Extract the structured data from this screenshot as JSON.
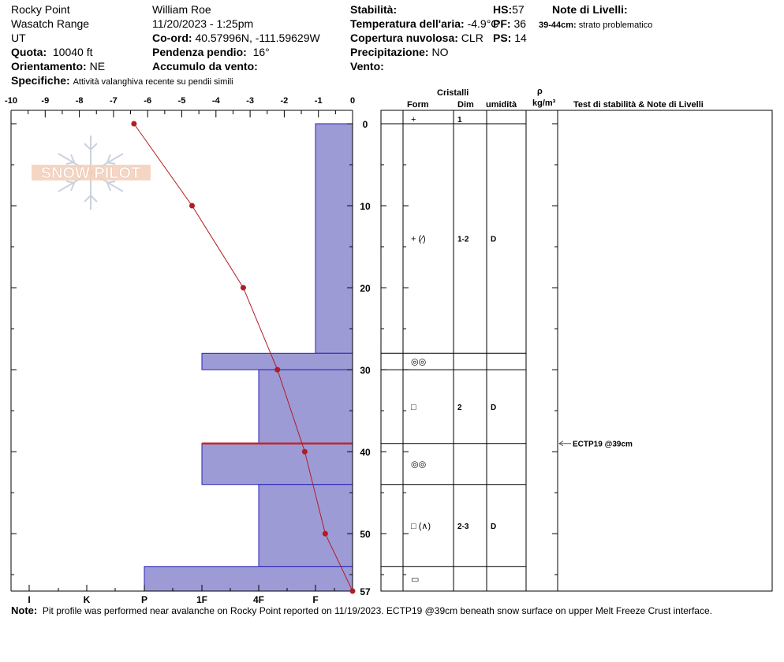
{
  "header": {
    "location": "Rocky Point",
    "range": "Wasatch Range",
    "state": "UT",
    "elevation_label": "Quota:",
    "elevation_value": "10040 ft",
    "aspect_label": "Orientamento:",
    "aspect_value": "NE",
    "specifics_label": "Specifiche:",
    "specifics_value": "Attività valanghiva recente su pendii simili",
    "observer": "William  Roe",
    "datetime": "11/20/2023 - 1:25pm",
    "coords_label": "Co-ord:",
    "coords_value": "40.57996N, -111.59629W",
    "slope_label": "Pendenza pendio:",
    "slope_value": "16°",
    "wind_loading_label": "Accumulo da vento:",
    "wind_loading_value": "",
    "stability_label": "Stabilità:",
    "stability_value": "",
    "air_temp_label": "Temperatura dell'aria:",
    "air_temp_value": "-4.9°C",
    "sky_label": "Copertura nuvolosa:",
    "sky_value": "CLR",
    "precip_label": "Precipitazione:",
    "precip_value": "NO",
    "wind_label": "Vento:",
    "wind_value": "",
    "hs_label": "HS:",
    "hs_value": "57",
    "pf_label": "PF:",
    "pf_value": "36",
    "ps_label": "PS:",
    "ps_value": "14",
    "layer_notes_label": "Note di Livelli:",
    "layer_notes": [
      {
        "range": "39-44cm:",
        "text": "strato problematico"
      }
    ]
  },
  "watermark": "SNOW PILOT",
  "table": {
    "crystals_title": "Cristalli",
    "col_form": "Form",
    "col_size": "Dim",
    "col_moisture": "umidità",
    "col_density_symbol": "ρ",
    "col_density_unit": "kg/m³",
    "col_tests": "Test di stabilità & Note di Livelli"
  },
  "note": {
    "label": "Note:",
    "text": "Pit profile was performed near avalanche on Rocky Point reported on 11/19/2023. ECTP19 @39cm beneath snow surface on upper Melt Freeze Crust interface."
  },
  "chart_data": {
    "type": "snow-profile",
    "temperature_axis": {
      "label": "",
      "ticks": [
        "-10",
        "-9",
        "-8",
        "-7",
        "-6",
        "-5",
        "-4",
        "-3",
        "-2",
        "-1",
        "0"
      ],
      "range": [
        -10,
        0
      ]
    },
    "depth_axis": {
      "ticks": [
        "0",
        "10",
        "20",
        "30",
        "40",
        "50",
        "57"
      ],
      "range": [
        0,
        57
      ],
      "direction": "top-down"
    },
    "hardness_axis": {
      "ticks": [
        "I",
        "K",
        "P",
        "1F",
        "4F",
        "F"
      ],
      "order_right_to_left": [
        "F",
        "4F",
        "1F",
        "P",
        "K",
        "I"
      ]
    },
    "temperature_profile": [
      {
        "depth": 0,
        "temp": -6.4
      },
      {
        "depth": 10,
        "temp": -4.7
      },
      {
        "depth": 20,
        "temp": -3.2
      },
      {
        "depth": 30,
        "temp": -2.2
      },
      {
        "depth": 40,
        "temp": -1.4
      },
      {
        "depth": 50,
        "temp": -0.8
      },
      {
        "depth": 57,
        "temp": 0
      }
    ],
    "hardness_layers": [
      {
        "top": 0,
        "bottom": 28,
        "hardness": "F"
      },
      {
        "top": 28,
        "bottom": 30,
        "hardness": "1F+"
      },
      {
        "top": 30,
        "bottom": 39,
        "hardness": "4F"
      },
      {
        "top": 39,
        "bottom": 44,
        "hardness": "1F+"
      },
      {
        "top": 44,
        "bottom": 54,
        "hardness": "4F"
      },
      {
        "top": 54,
        "bottom": 57,
        "hardness": "P+"
      }
    ],
    "problem_layer_depth": 39,
    "layers_table": [
      {
        "top": 0,
        "bottom": 0,
        "form": "+",
        "size": "1",
        "moisture": ""
      },
      {
        "top": 0,
        "bottom": 28,
        "form": "+ (⁄)",
        "size": "1-2",
        "moisture": "D"
      },
      {
        "top": 28,
        "bottom": 30,
        "form": "◎◎",
        "size": "",
        "moisture": ""
      },
      {
        "top": 30,
        "bottom": 39,
        "form": "□",
        "size": "2",
        "moisture": "D"
      },
      {
        "top": 39,
        "bottom": 44,
        "form": "◎◎",
        "size": "",
        "moisture": ""
      },
      {
        "top": 44,
        "bottom": 54,
        "form": "□ (∧)",
        "size": "2-3",
        "moisture": "D"
      },
      {
        "top": 54,
        "bottom": 57,
        "form": "▭",
        "size": "",
        "moisture": ""
      }
    ],
    "stability_tests": [
      {
        "depth": 39,
        "label": "ECTP19 @39cm"
      }
    ]
  }
}
